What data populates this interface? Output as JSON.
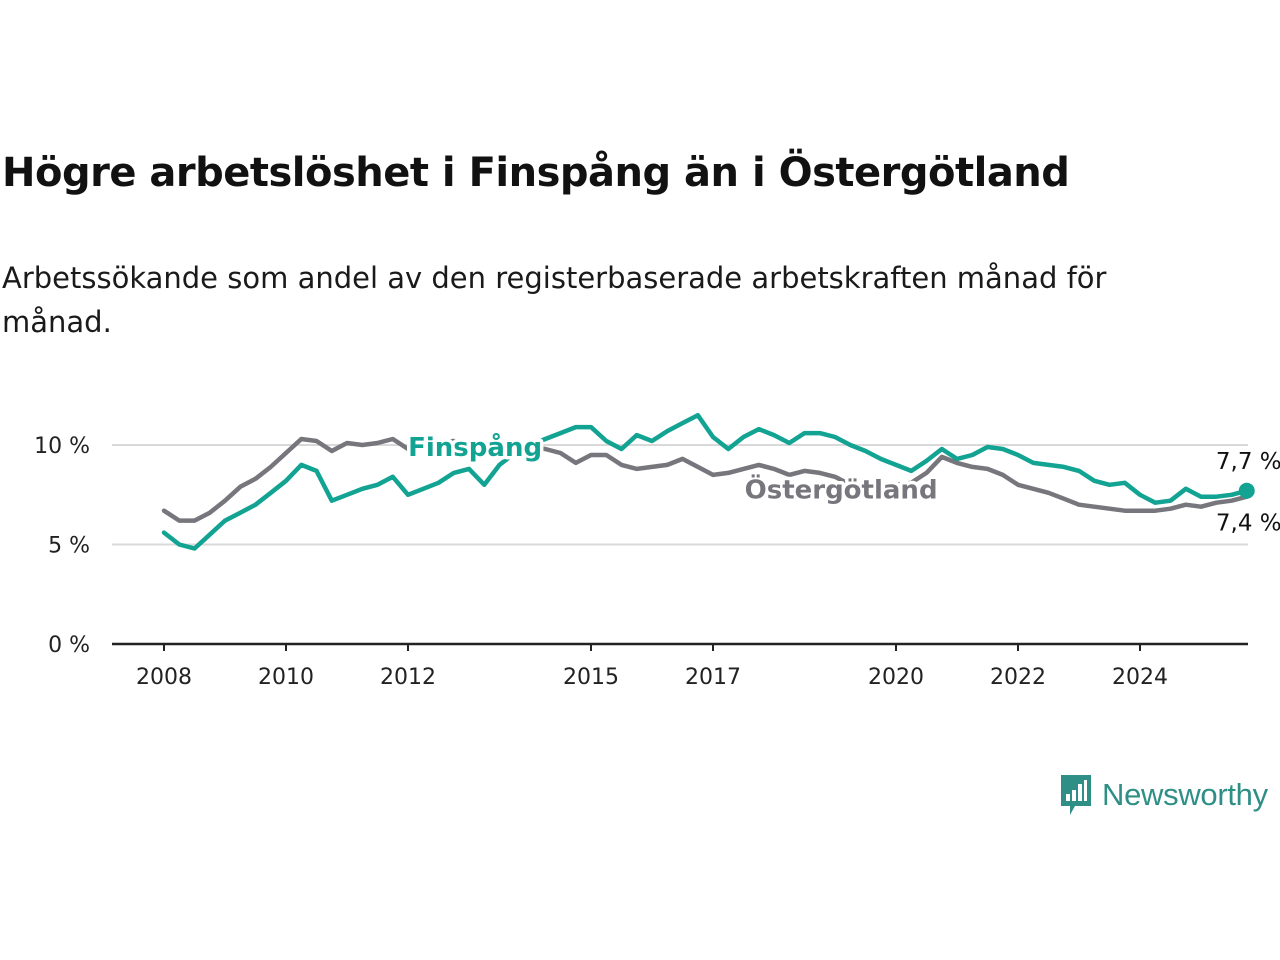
{
  "title": "Högre arbetslöshet i Finspång än i Östergötland",
  "subtitle": "Arbetssökande som andel av den registerbaserade arbetskraften månad för månad.",
  "brand": "Newsworthy",
  "colors": {
    "finspang": "#12a393",
    "ostergotland": "#77767d",
    "grid": "#d9d9d9",
    "axis": "#222222",
    "brand": "#2f8f86"
  },
  "chart_data": {
    "type": "line",
    "title": "Högre arbetslöshet i Finspång än i Östergötland",
    "subtitle": "Arbetssökande som andel av den registerbaserade arbetskraften månad för månad.",
    "xlabel": "",
    "ylabel": "",
    "ylim": [
      0,
      10
    ],
    "y_ticks": [
      {
        "value": 0,
        "label": "0 %"
      },
      {
        "value": 5,
        "label": "5 %"
      },
      {
        "value": 10,
        "label": "10 %"
      }
    ],
    "x_ticks": [
      {
        "value": 2008,
        "label": "2008"
      },
      {
        "value": 2010,
        "label": "2010"
      },
      {
        "value": 2012,
        "label": "2012"
      },
      {
        "value": 2015,
        "label": "2015"
      },
      {
        "value": 2017,
        "label": "2017"
      },
      {
        "value": 2020,
        "label": "2020"
      },
      {
        "value": 2022,
        "label": "2022"
      },
      {
        "value": 2024,
        "label": "2024"
      }
    ],
    "grid": true,
    "series": [
      {
        "name": "Finspång",
        "end_label": "7,7 %",
        "points": [
          [
            2008.0,
            5.6
          ],
          [
            2008.25,
            5.0
          ],
          [
            2008.5,
            4.8
          ],
          [
            2008.75,
            5.5
          ],
          [
            2009.0,
            6.2
          ],
          [
            2009.25,
            6.6
          ],
          [
            2009.5,
            7.0
          ],
          [
            2009.75,
            7.6
          ],
          [
            2010.0,
            8.2
          ],
          [
            2010.25,
            9.0
          ],
          [
            2010.5,
            8.7
          ],
          [
            2010.75,
            7.2
          ],
          [
            2011.0,
            7.5
          ],
          [
            2011.25,
            7.8
          ],
          [
            2011.5,
            8.0
          ],
          [
            2011.75,
            8.4
          ],
          [
            2012.0,
            7.5
          ],
          [
            2012.25,
            7.8
          ],
          [
            2012.5,
            8.1
          ],
          [
            2012.75,
            8.6
          ],
          [
            2013.0,
            8.8
          ],
          [
            2013.25,
            8.0
          ],
          [
            2013.5,
            9.0
          ],
          [
            2013.75,
            9.6
          ],
          [
            2014.0,
            10.0
          ],
          [
            2014.25,
            10.3
          ],
          [
            2014.5,
            10.6
          ],
          [
            2014.75,
            10.9
          ],
          [
            2015.0,
            10.9
          ],
          [
            2015.25,
            10.2
          ],
          [
            2015.5,
            9.8
          ],
          [
            2015.75,
            10.5
          ],
          [
            2016.0,
            10.2
          ],
          [
            2016.25,
            10.7
          ],
          [
            2016.5,
            11.1
          ],
          [
            2016.75,
            11.5
          ],
          [
            2017.0,
            10.4
          ],
          [
            2017.25,
            9.8
          ],
          [
            2017.5,
            10.4
          ],
          [
            2017.75,
            10.8
          ],
          [
            2018.0,
            10.5
          ],
          [
            2018.25,
            10.1
          ],
          [
            2018.5,
            10.6
          ],
          [
            2018.75,
            10.6
          ],
          [
            2019.0,
            10.4
          ],
          [
            2019.25,
            10.0
          ],
          [
            2019.5,
            9.7
          ],
          [
            2019.75,
            9.3
          ],
          [
            2020.0,
            9.0
          ],
          [
            2020.25,
            8.7
          ],
          [
            2020.5,
            9.2
          ],
          [
            2020.75,
            9.8
          ],
          [
            2021.0,
            9.3
          ],
          [
            2021.25,
            9.5
          ],
          [
            2021.5,
            9.9
          ],
          [
            2021.75,
            9.8
          ],
          [
            2022.0,
            9.5
          ],
          [
            2022.25,
            9.1
          ],
          [
            2022.5,
            9.0
          ],
          [
            2022.75,
            8.9
          ],
          [
            2023.0,
            8.7
          ],
          [
            2023.25,
            8.2
          ],
          [
            2023.5,
            8.0
          ],
          [
            2023.75,
            8.1
          ],
          [
            2024.0,
            7.5
          ],
          [
            2024.25,
            7.1
          ],
          [
            2024.5,
            7.2
          ],
          [
            2024.75,
            7.8
          ],
          [
            2025.0,
            7.4
          ],
          [
            2025.25,
            7.4
          ],
          [
            2025.5,
            7.5
          ],
          [
            2025.75,
            7.7
          ]
        ]
      },
      {
        "name": "Östergötland",
        "end_label": "7,4 %",
        "points": [
          [
            2008.0,
            6.7
          ],
          [
            2008.25,
            6.2
          ],
          [
            2008.5,
            6.2
          ],
          [
            2008.75,
            6.6
          ],
          [
            2009.0,
            7.2
          ],
          [
            2009.25,
            7.9
          ],
          [
            2009.5,
            8.3
          ],
          [
            2009.75,
            8.9
          ],
          [
            2010.0,
            9.6
          ],
          [
            2010.25,
            10.3
          ],
          [
            2010.5,
            10.2
          ],
          [
            2010.75,
            9.7
          ],
          [
            2011.0,
            10.1
          ],
          [
            2011.25,
            10.0
          ],
          [
            2011.5,
            10.1
          ],
          [
            2011.75,
            10.3
          ],
          [
            2012.0,
            9.8
          ],
          [
            2012.25,
            9.9
          ],
          [
            2012.5,
            10.1
          ],
          [
            2012.75,
            10.2
          ],
          [
            2013.0,
            10.0
          ],
          [
            2013.25,
            9.6
          ],
          [
            2013.5,
            10.0
          ],
          [
            2013.75,
            9.7
          ],
          [
            2014.0,
            9.9
          ],
          [
            2014.25,
            9.8
          ],
          [
            2014.5,
            9.6
          ],
          [
            2014.75,
            9.1
          ],
          [
            2015.0,
            9.5
          ],
          [
            2015.25,
            9.5
          ],
          [
            2015.5,
            9.0
          ],
          [
            2015.75,
            8.8
          ],
          [
            2016.0,
            8.9
          ],
          [
            2016.25,
            9.0
          ],
          [
            2016.5,
            9.3
          ],
          [
            2016.75,
            8.9
          ],
          [
            2017.0,
            8.5
          ],
          [
            2017.25,
            8.6
          ],
          [
            2017.5,
            8.8
          ],
          [
            2017.75,
            9.0
          ],
          [
            2018.0,
            8.8
          ],
          [
            2018.25,
            8.5
          ],
          [
            2018.5,
            8.7
          ],
          [
            2018.75,
            8.6
          ],
          [
            2019.0,
            8.4
          ],
          [
            2019.25,
            8.0
          ],
          [
            2019.5,
            8.0
          ],
          [
            2019.75,
            7.9
          ],
          [
            2020.0,
            8.0
          ],
          [
            2020.25,
            8.1
          ],
          [
            2020.5,
            8.6
          ],
          [
            2020.75,
            9.4
          ],
          [
            2021.0,
            9.1
          ],
          [
            2021.25,
            8.9
          ],
          [
            2021.5,
            8.8
          ],
          [
            2021.75,
            8.5
          ],
          [
            2022.0,
            8.0
          ],
          [
            2022.25,
            7.8
          ],
          [
            2022.5,
            7.6
          ],
          [
            2022.75,
            7.3
          ],
          [
            2023.0,
            7.0
          ],
          [
            2023.25,
            6.9
          ],
          [
            2023.5,
            6.8
          ],
          [
            2023.75,
            6.7
          ],
          [
            2024.0,
            6.7
          ],
          [
            2024.25,
            6.7
          ],
          [
            2024.5,
            6.8
          ],
          [
            2024.75,
            7.0
          ],
          [
            2025.0,
            6.9
          ],
          [
            2025.25,
            7.1
          ],
          [
            2025.5,
            7.2
          ],
          [
            2025.75,
            7.4
          ]
        ]
      }
    ]
  }
}
